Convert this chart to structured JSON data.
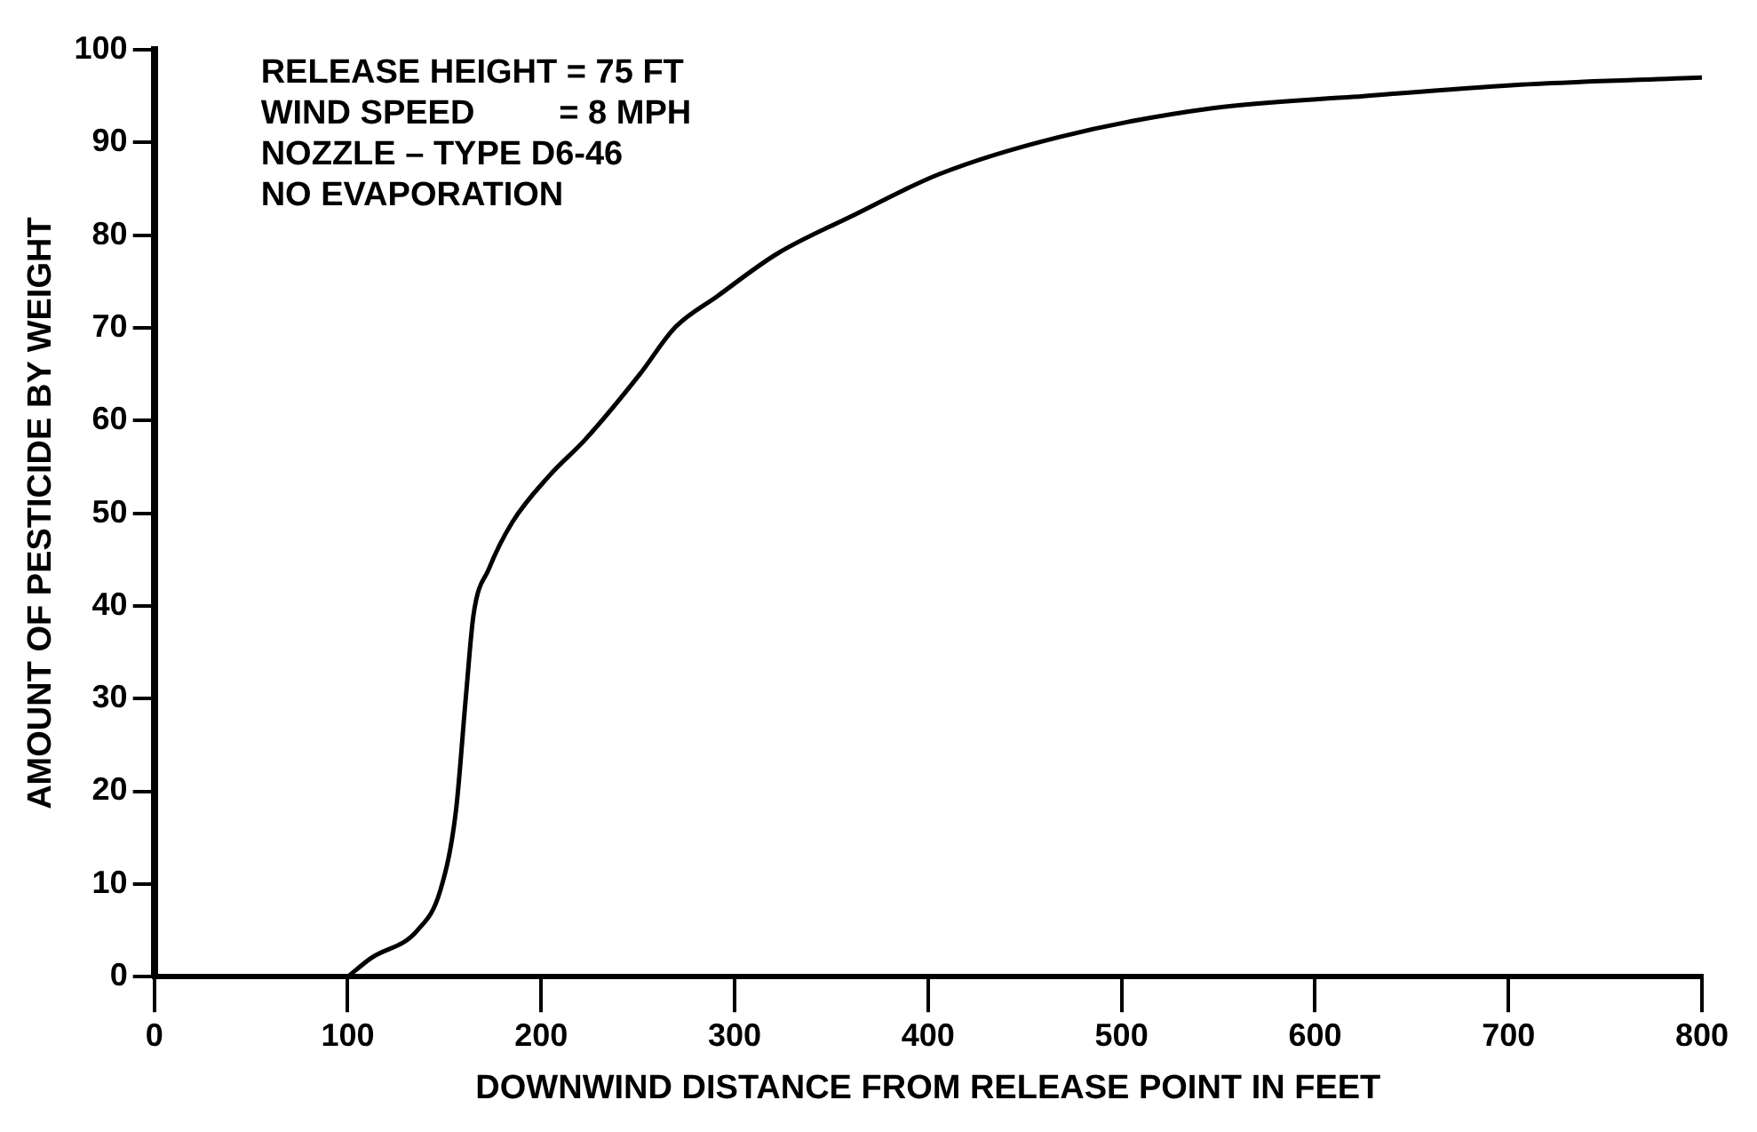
{
  "chart_data": {
    "type": "line",
    "xlabel": "DOWNWIND DISTANCE FROM RELEASE POINT IN FEET",
    "ylabel": "AMOUNT OF PESTICIDE BY WEIGHT",
    "annotations": [
      "RELEASE HEIGHT = 75 FT",
      "WIND SPEED         = 8 MPH",
      "NOZZLE – TYPE D6-46",
      "NO EVAPORATION"
    ],
    "x": [
      100,
      112,
      136,
      148,
      156,
      161,
      165,
      173,
      185,
      204,
      223,
      251,
      269,
      291,
      322,
      360,
      406,
      468,
      547,
      625,
      703,
      800
    ],
    "series": [
      {
        "color": "#000000",
        "values": [
          0,
          2,
          5,
          9.4,
          18,
          30,
          39,
          44,
          49,
          54,
          58,
          65,
          70,
          73.4,
          78,
          82,
          86.6,
          90.6,
          93.7,
          95,
          96.2,
          97
        ]
      }
    ],
    "xlim": [
      0,
      800
    ],
    "xticks": [
      0,
      100,
      200,
      300,
      400,
      500,
      600,
      700,
      800
    ],
    "ylim": [
      0,
      100
    ],
    "yticks": [
      0,
      10,
      20,
      30,
      40,
      50,
      60,
      70,
      80,
      90,
      100
    ],
    "grid": false,
    "legend": false,
    "marker": "none",
    "line_style": "solid"
  }
}
